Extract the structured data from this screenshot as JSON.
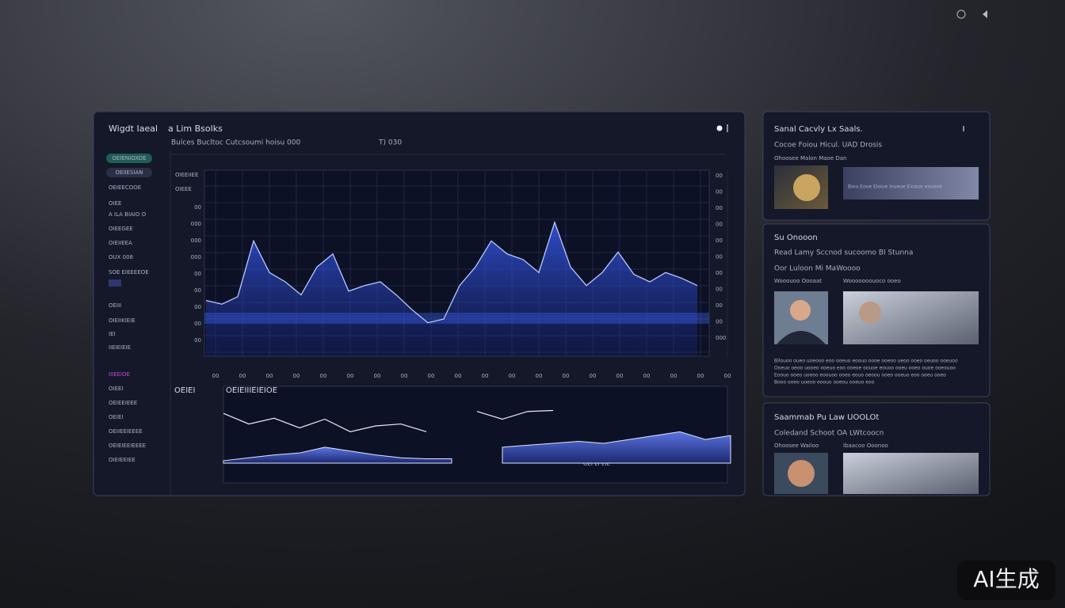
{
  "main_panel": {
    "title": "Wigdt Iaeal",
    "tab": "a Lim Bsolks",
    "subtitle": "Bulces Bucltoc Cutcsoumi hoisu 000",
    "subtitle_meta": "T) 030",
    "sidebar": {
      "pills": [
        "OEIENIOXOE",
        "OEIIESIAN"
      ],
      "items": [
        "OEIEECOOE",
        "OIEE",
        "A ILA BIAIO O",
        "OIEEGEE",
        "OIEIIEEA",
        "OUX 008",
        "SOE EIEEEEOE",
        "OEIII",
        "OIEIIKIEIE",
        "IEI",
        "IIEIEIEIE",
        "IIIEEIOE",
        "OIEEI",
        "OEIEEIEEE",
        "OEIEI",
        "OEIIEEIEEEE",
        "OEIEIEEIEEEE",
        "OIEIEEIEE"
      ]
    },
    "main_chart": {
      "legend": [
        "OIEEIIEE",
        "OIEEE"
      ],
      "y_labels_left": [
        "00",
        "000",
        "000",
        "000",
        "00",
        "00",
        "00",
        "00",
        "00"
      ],
      "y_labels_right": [
        "00",
        "00",
        "00",
        "00",
        "00",
        "00",
        "00",
        "00",
        "00",
        "00",
        "000"
      ],
      "x_labels": [
        "00",
        "00",
        "00",
        "00",
        "00",
        "00",
        "00",
        "00",
        "00",
        "00",
        "00",
        "00",
        "00",
        "00",
        "00",
        "00",
        "00",
        "00",
        "00",
        "00"
      ],
      "values": [
        30,
        28,
        32,
        62,
        45,
        40,
        33,
        48,
        55,
        35,
        38,
        40,
        33,
        25,
        18,
        20,
        38,
        48,
        62,
        55,
        52,
        45,
        72,
        48,
        38,
        45,
        56,
        44,
        40,
        45,
        42,
        38
      ]
    },
    "lower_chart": {
      "title": "OEIEI",
      "subtitle": "OEIEIIIEIEIOE",
      "note": "OEI EI  EIE",
      "line": [
        72,
        61,
        67,
        57,
        66,
        53,
        59,
        61,
        53,
        null,
        74,
        66,
        74,
        75
      ],
      "area": [
        23,
        26,
        29,
        31,
        37,
        33,
        29,
        26,
        25,
        25,
        null,
        37,
        39,
        41,
        43,
        41,
        45,
        49,
        53,
        45,
        49
      ]
    }
  },
  "cards": [
    {
      "title": "Sanal Cacvly Lx Saals.",
      "headline": "Cocoe Foiou Hicul. UAD Drosis",
      "caption": "Ohoosee Malon Maoe Dan",
      "text": "Biou Eoue Eloiue Ioueue Eioaue eoueoe"
    },
    {
      "title": "Su Onooon",
      "headline": "Read Lamy Sccnod sucoomo BI Stunna",
      "subhead": "Oor Luloon Mi  MaWoooo",
      "captions": [
        "Wooouoo Oooaat",
        "Wooooooouoco ooeo"
      ],
      "paragraph": [
        "Bilouoo oueo uoeooo eoo ooeuo eoouo oooe ooeoo ueoo ooeo oeuoo ooeuoo",
        "Ooeuo oeoo uooeo ooeuo eoo ooeoe oouoe eouoo ooeu ooeo ouoe ooeouoo",
        "Eoouo ooeo uoeoo eoouoo ooeo eouo oeoou ooeo ooeuo eoo ooeu ooeo",
        "Booo ooeo uoeoo eoouo ooeou ooeuo eoo"
      ]
    },
    {
      "title": "Saammab Pu Law UOOLOt",
      "headline": "Coledand Schoot OA LWtcoocn",
      "captions": [
        "Ohoosee Wailoo",
        "Ibaacoo Ooonoo"
      ]
    }
  ],
  "watermark": "AI生成"
}
